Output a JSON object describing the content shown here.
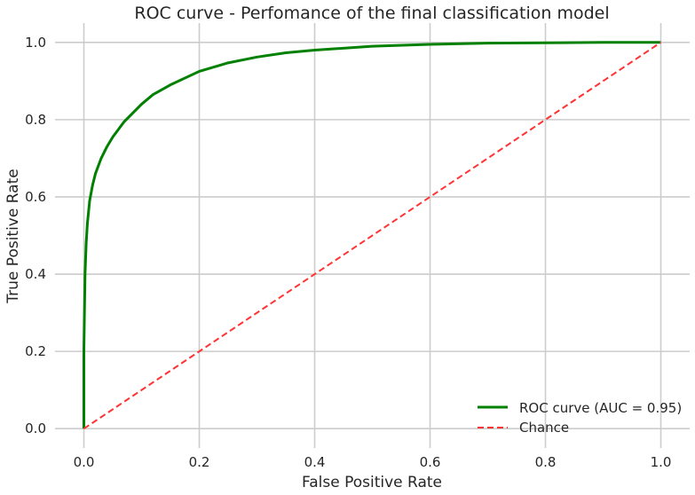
{
  "chart_data": {
    "type": "line",
    "title": "ROC curve - Perfomance of the final classification model",
    "xlabel": "False Positive Rate",
    "ylabel": "True Positive Rate",
    "xlim": [
      -0.05,
      1.05
    ],
    "ylim": [
      -0.05,
      1.05
    ],
    "xticks": [
      "0.0",
      "0.2",
      "0.4",
      "0.6",
      "0.8",
      "1.0"
    ],
    "yticks": [
      "0.0",
      "0.2",
      "0.4",
      "0.6",
      "0.8",
      "1.0"
    ],
    "grid": true,
    "legend_position": "lower-right",
    "series": [
      {
        "name": "ROC curve (AUC = 0.95)",
        "color": "#008000",
        "style": "solid",
        "x": [
          0.0,
          0.0,
          0.002,
          0.004,
          0.006,
          0.008,
          0.01,
          0.015,
          0.02,
          0.03,
          0.04,
          0.05,
          0.06,
          0.07,
          0.08,
          0.1,
          0.12,
          0.15,
          0.2,
          0.25,
          0.3,
          0.35,
          0.4,
          0.5,
          0.6,
          0.7,
          0.8,
          0.9,
          1.0
        ],
        "y": [
          0.0,
          0.2,
          0.4,
          0.48,
          0.53,
          0.56,
          0.59,
          0.63,
          0.66,
          0.7,
          0.73,
          0.755,
          0.775,
          0.795,
          0.81,
          0.84,
          0.865,
          0.89,
          0.925,
          0.947,
          0.962,
          0.973,
          0.98,
          0.99,
          0.995,
          0.998,
          0.999,
          1.0,
          1.0
        ]
      },
      {
        "name": "Chance",
        "color": "#ff3333",
        "style": "dashed",
        "x": [
          0.0,
          1.0
        ],
        "y": [
          0.0,
          1.0
        ]
      }
    ]
  }
}
